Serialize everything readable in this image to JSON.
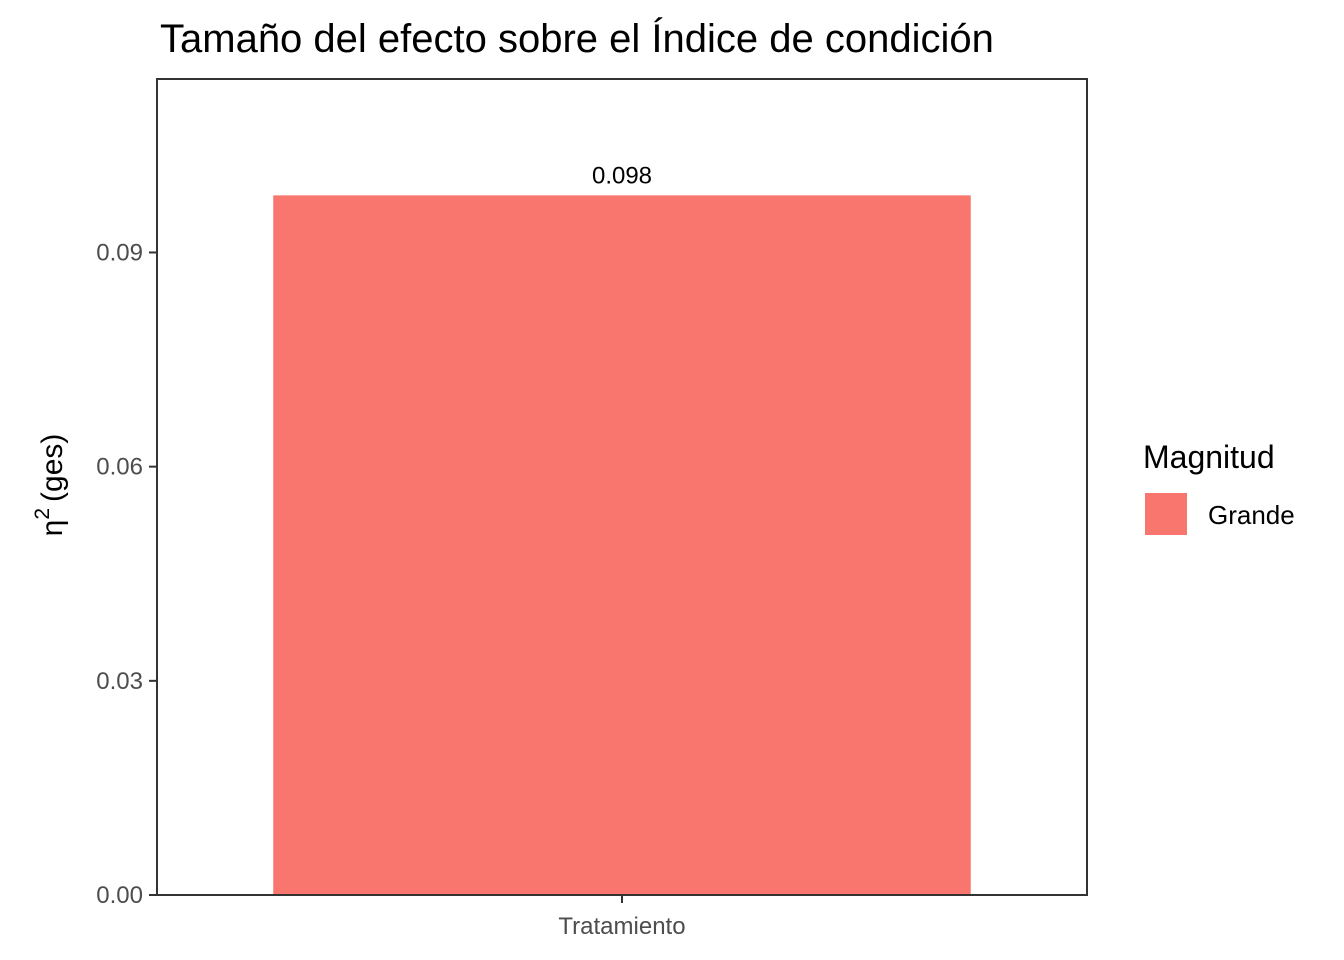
{
  "chart_data": {
    "type": "bar",
    "title": "Tamaño del efecto sobre el Índice de condición",
    "ylabel": {
      "symbol": "η",
      "superscript": "2",
      "text": "(ges)"
    },
    "xlabel": "",
    "categories": [
      "Tratamiento"
    ],
    "values": [
      0.098
    ],
    "data_labels": [
      "0.098"
    ],
    "ylim": [
      0,
      0.1143
    ],
    "yticks": [
      0,
      0.03,
      0.06,
      0.09
    ],
    "ytick_labels": [
      "0.00",
      "0.03",
      "0.06",
      "0.09"
    ],
    "grid": false,
    "legend": {
      "title": "Magnitud",
      "position": "right",
      "entries": [
        {
          "label": "Grande",
          "color": "#F8766D"
        }
      ]
    },
    "colors": {
      "bar": "#F8766D",
      "panel_border": "#333333",
      "tick": "#333333",
      "tick_label": "#4d4d4d"
    }
  }
}
